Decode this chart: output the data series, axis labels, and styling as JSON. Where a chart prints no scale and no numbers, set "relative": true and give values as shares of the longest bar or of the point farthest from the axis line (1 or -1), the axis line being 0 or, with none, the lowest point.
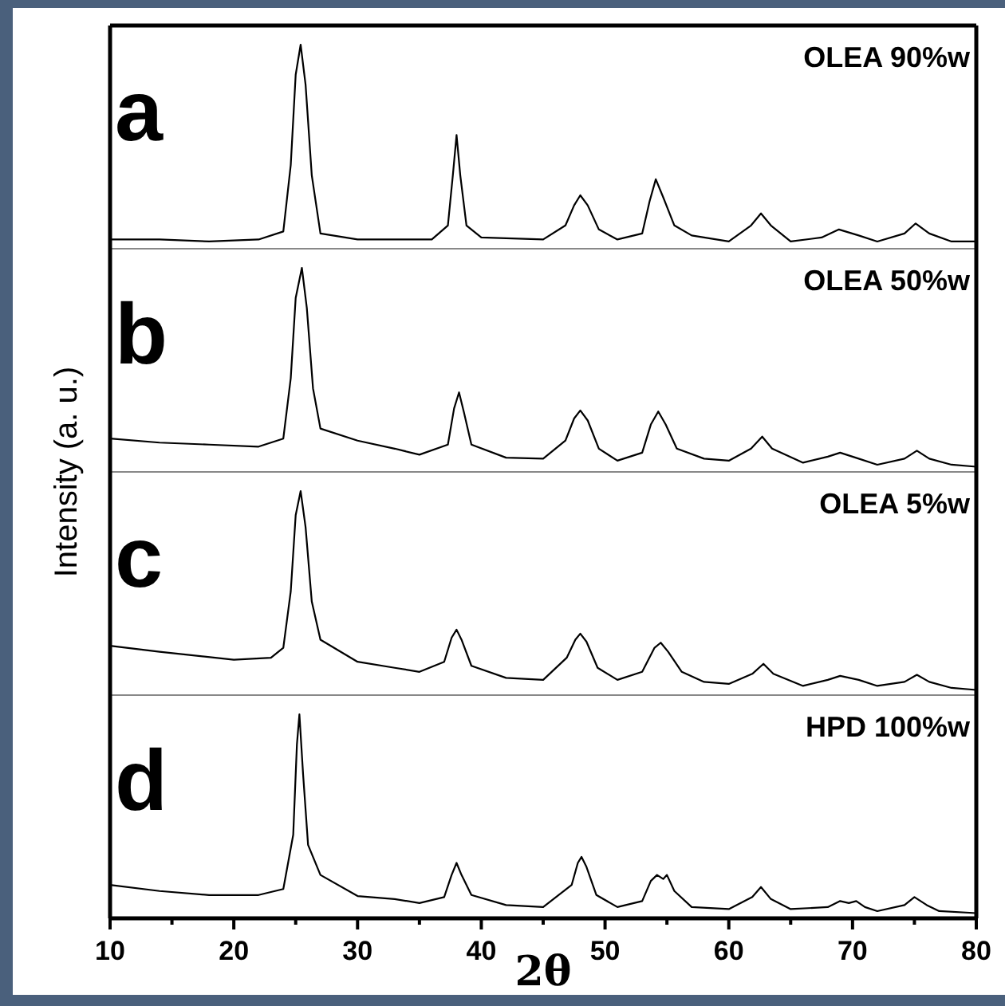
{
  "chart_data": [
    {
      "type": "line",
      "title": "a",
      "annotations": [
        "OLEA 90%w"
      ],
      "ylabel": "Intensity (a. u.)",
      "relative": true,
      "xlim": [
        10,
        80
      ],
      "tick_labels": false,
      "series": [
        {
          "color": "#000000",
          "x": [
            10,
            14,
            18,
            22,
            24,
            24.6,
            25,
            25.4,
            25.8,
            26.3,
            27,
            30,
            33,
            36,
            37.3,
            37.7,
            38,
            38.3,
            38.8,
            40,
            45,
            46.8,
            47.5,
            48,
            48.6,
            49.5,
            51,
            53,
            53.6,
            54.1,
            54.7,
            55.6,
            57,
            60,
            61.8,
            62.6,
            63.4,
            65,
            67.5,
            68.9,
            70.5,
            72,
            74.2,
            75.1,
            76.2,
            78,
            80
          ],
          "values": [
            0.03,
            0.03,
            0.02,
            0.03,
            0.07,
            0.4,
            0.85,
            1,
            0.8,
            0.35,
            0.06,
            0.03,
            0.03,
            0.03,
            0.1,
            0.35,
            0.55,
            0.35,
            0.1,
            0.04,
            0.03,
            0.1,
            0.2,
            0.25,
            0.2,
            0.08,
            0.03,
            0.06,
            0.22,
            0.33,
            0.24,
            0.1,
            0.05,
            0.02,
            0.1,
            0.16,
            0.1,
            0.02,
            0.04,
            0.08,
            0.05,
            0.02,
            0.06,
            0.11,
            0.06,
            0.02,
            0.02
          ]
        }
      ]
    },
    {
      "type": "line",
      "title": "b",
      "annotations": [
        "OLEA 50%w"
      ],
      "relative": true,
      "xlim": [
        10,
        80
      ],
      "tick_labels": false,
      "series": [
        {
          "color": "#000000",
          "x": [
            10,
            14,
            18,
            22,
            24,
            24.6,
            25,
            25.5,
            25.9,
            26.4,
            27,
            30,
            33,
            35,
            37.3,
            37.8,
            38.2,
            38.6,
            39.2,
            42,
            45,
            46.8,
            47.5,
            48,
            48.6,
            49.5,
            51,
            53,
            53.7,
            54.3,
            54.9,
            55.8,
            58,
            60,
            61.8,
            62.7,
            63.5,
            66,
            68,
            69,
            70.5,
            72,
            74.2,
            75.2,
            76.2,
            78,
            80
          ],
          "values": [
            0.15,
            0.13,
            0.12,
            0.11,
            0.15,
            0.45,
            0.85,
            1,
            0.8,
            0.4,
            0.2,
            0.14,
            0.1,
            0.07,
            0.12,
            0.3,
            0.38,
            0.28,
            0.12,
            0.055,
            0.05,
            0.14,
            0.25,
            0.29,
            0.24,
            0.1,
            0.04,
            0.08,
            0.22,
            0.285,
            0.22,
            0.1,
            0.05,
            0.04,
            0.1,
            0.16,
            0.1,
            0.03,
            0.06,
            0.08,
            0.05,
            0.02,
            0.05,
            0.09,
            0.05,
            0.02,
            0.01
          ]
        }
      ]
    },
    {
      "type": "line",
      "title": "c",
      "annotations": [
        "OLEA 5%w"
      ],
      "relative": true,
      "xlim": [
        10,
        80
      ],
      "tick_labels": false,
      "series": [
        {
          "color": "#000000",
          "x": [
            10,
            14,
            20,
            23,
            24,
            24.6,
            25,
            25.4,
            25.8,
            26.3,
            27,
            30,
            33,
            35,
            37,
            37.6,
            38,
            38.4,
            39.2,
            42,
            45,
            46.9,
            47.6,
            48,
            48.5,
            49.4,
            51,
            53,
            54,
            54.5,
            55.1,
            56.2,
            58,
            60,
            61.9,
            62.8,
            63.6,
            66,
            68,
            69,
            70.5,
            72,
            74.2,
            75.2,
            76.2,
            78,
            80
          ],
          "values": [
            0.23,
            0.2,
            0.16,
            0.17,
            0.22,
            0.5,
            0.88,
            1,
            0.82,
            0.45,
            0.26,
            0.15,
            0.12,
            0.1,
            0.15,
            0.27,
            0.31,
            0.26,
            0.13,
            0.07,
            0.06,
            0.17,
            0.26,
            0.29,
            0.25,
            0.12,
            0.06,
            0.1,
            0.22,
            0.245,
            0.2,
            0.1,
            0.05,
            0.04,
            0.09,
            0.14,
            0.09,
            0.03,
            0.06,
            0.08,
            0.06,
            0.03,
            0.05,
            0.085,
            0.05,
            0.02,
            0.01
          ]
        }
      ]
    },
    {
      "type": "line",
      "title": "d",
      "annotations": [
        "HPD 100%w"
      ],
      "xlabel": "2θ",
      "relative": true,
      "xlim": [
        10,
        80
      ],
      "xticks": [
        10,
        {
          "value": 15,
          "label": null
        },
        20,
        {
          "value": 25,
          "label": null
        },
        30,
        {
          "value": 35,
          "label": null
        },
        40,
        {
          "value": 45,
          "label": null
        },
        50,
        {
          "value": 55,
          "label": null
        },
        60,
        {
          "value": 65,
          "label": null
        },
        70,
        {
          "value": 75,
          "label": null
        },
        80
      ],
      "series": [
        {
          "color": "#000000",
          "x": [
            10,
            14,
            18,
            22,
            24,
            24.8,
            25.1,
            25.3,
            25.6,
            26,
            27,
            30,
            33,
            35,
            37,
            37.6,
            38,
            38.4,
            39.2,
            42,
            45,
            47.3,
            47.8,
            48.1,
            48.5,
            49.3,
            51,
            53,
            53.7,
            54.2,
            54.7,
            55,
            55.6,
            57,
            60,
            61.9,
            62.6,
            63.4,
            65,
            68,
            69,
            69.7,
            70.3,
            71,
            72,
            74.2,
            75,
            76,
            77,
            80
          ],
          "values": [
            0.15,
            0.12,
            0.1,
            0.1,
            0.13,
            0.4,
            0.85,
            1,
            0.7,
            0.35,
            0.2,
            0.095,
            0.08,
            0.06,
            0.09,
            0.2,
            0.26,
            0.2,
            0.1,
            0.05,
            0.04,
            0.15,
            0.26,
            0.29,
            0.24,
            0.1,
            0.04,
            0.07,
            0.17,
            0.2,
            0.18,
            0.2,
            0.12,
            0.04,
            0.03,
            0.09,
            0.14,
            0.08,
            0.03,
            0.04,
            0.07,
            0.06,
            0.07,
            0.04,
            0.02,
            0.05,
            0.09,
            0.05,
            0.02,
            0.01
          ]
        }
      ]
    }
  ]
}
